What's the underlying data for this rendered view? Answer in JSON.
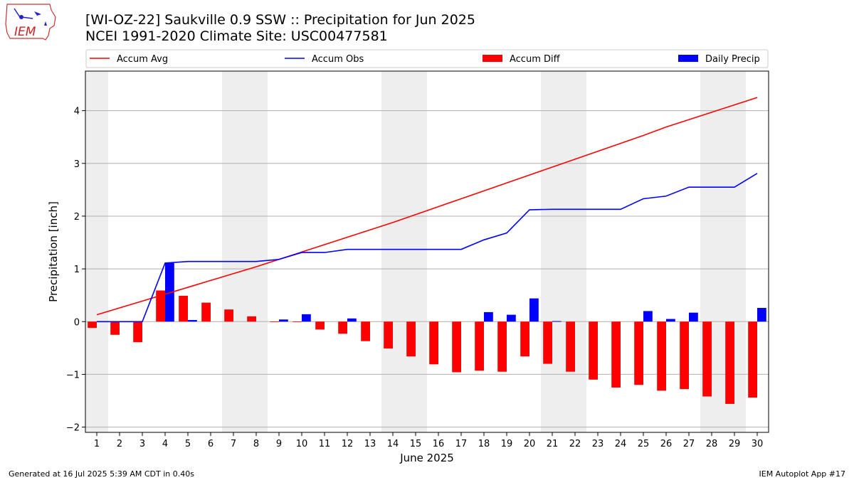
{
  "header": {
    "title_line1": "[WI-OZ-22] Saukville 0.9 SSW :: Precipitation for Jun 2025",
    "title_line2": "NCEI 1991-2020 Climate Site: USC00477581",
    "logo_text": "IEM"
  },
  "footer": {
    "generated": "Generated at 16 Jul 2025 5:39 AM CDT in 0.40s",
    "app": "IEM Autoplot App #17"
  },
  "colors": {
    "accum_avg": "#ff0000",
    "accum_obs": "#0000ff",
    "accum_diff": "#ff0000",
    "daily_precip": "#0000ff",
    "weekend_band": "#eeeeee",
    "grid": "#b0b0b0"
  },
  "chart_data": {
    "type": "bar",
    "xlabel": "June 2025",
    "ylabel": "Precipitation [inch]",
    "xlim": [
      0.5,
      30.5
    ],
    "ylim": [
      -2.1,
      4.75
    ],
    "yticks": [
      -2,
      -1,
      0,
      1,
      2,
      3,
      4
    ],
    "grid": "horizontal",
    "legend_placement": "top",
    "categories": [
      1,
      2,
      3,
      4,
      5,
      6,
      7,
      8,
      9,
      10,
      11,
      12,
      13,
      14,
      15,
      16,
      17,
      18,
      19,
      20,
      21,
      22,
      23,
      24,
      25,
      26,
      27,
      28,
      29,
      30
    ],
    "shaded_days": [
      [
        0.5,
        1.5
      ],
      [
        6.5,
        8.5
      ],
      [
        13.5,
        15.5
      ],
      [
        20.5,
        22.5
      ],
      [
        27.5,
        29.5
      ]
    ],
    "series": [
      {
        "name": "Accum Avg",
        "kind": "line",
        "values": [
          0.13,
          0.26,
          0.39,
          0.52,
          0.65,
          0.78,
          0.91,
          1.04,
          1.18,
          1.32,
          1.46,
          1.6,
          1.74,
          1.88,
          2.03,
          2.18,
          2.33,
          2.48,
          2.63,
          2.78,
          2.93,
          3.08,
          3.23,
          3.38,
          3.53,
          3.69,
          3.83,
          3.97,
          4.11,
          4.25
        ]
      },
      {
        "name": "Accum Obs",
        "kind": "line",
        "values": [
          0.0,
          0.0,
          0.0,
          1.11,
          1.14,
          1.14,
          1.14,
          1.14,
          1.18,
          1.31,
          1.31,
          1.37,
          1.37,
          1.37,
          1.37,
          1.37,
          1.37,
          1.55,
          1.68,
          2.12,
          2.13,
          2.13,
          2.13,
          2.13,
          2.33,
          2.38,
          2.55,
          2.55,
          2.55,
          2.81
        ]
      },
      {
        "name": "Accum Diff",
        "kind": "bar",
        "values": [
          -0.12,
          -0.25,
          -0.39,
          0.59,
          0.49,
          0.36,
          0.23,
          0.1,
          -0.01,
          -0.01,
          -0.15,
          -0.23,
          -0.37,
          -0.51,
          -0.66,
          -0.81,
          -0.96,
          -0.93,
          -0.95,
          -0.66,
          -0.8,
          -0.95,
          -1.1,
          -1.25,
          -1.2,
          -1.31,
          -1.28,
          -1.42,
          -1.56,
          -1.44
        ]
      },
      {
        "name": "Daily Precip",
        "kind": "bar",
        "values": [
          0.0,
          0.0,
          0.0,
          1.11,
          0.03,
          0.0,
          0.0,
          0.0,
          0.04,
          0.14,
          0.0,
          0.06,
          0.0,
          0.0,
          0.0,
          0.0,
          0.0,
          0.18,
          0.13,
          0.44,
          0.01,
          0.0,
          0.0,
          0.0,
          0.2,
          0.05,
          0.17,
          0.0,
          0.0,
          0.26
        ]
      }
    ]
  }
}
